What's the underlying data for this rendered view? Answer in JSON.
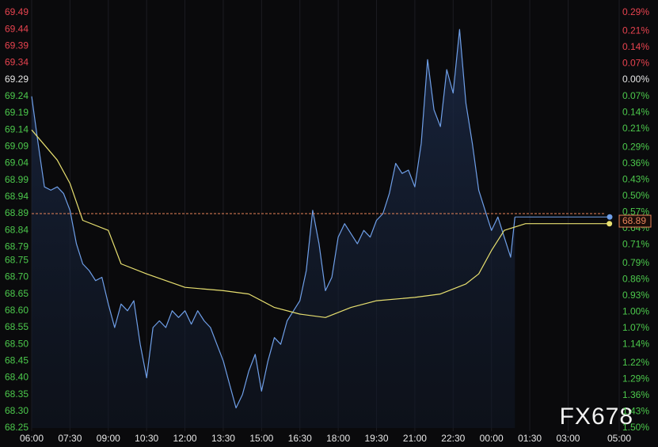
{
  "chart_data": {
    "type": "line",
    "watermark": "FX678",
    "reference": 69.29,
    "up_color": "#e8434f",
    "down_color": "#4cc94c",
    "flat_color": "#e6e6e6",
    "xlim": [
      0,
      1380
    ],
    "xticks": [
      {
        "value": 0,
        "label": "06:00"
      },
      {
        "value": 90,
        "label": "07:30"
      },
      {
        "value": 180,
        "label": "09:00"
      },
      {
        "value": 270,
        "label": "10:30"
      },
      {
        "value": 360,
        "label": "12:00"
      },
      {
        "value": 450,
        "label": "13:30"
      },
      {
        "value": 540,
        "label": "15:00"
      },
      {
        "value": 630,
        "label": "16:30"
      },
      {
        "value": 720,
        "label": "18:00"
      },
      {
        "value": 810,
        "label": "19:30"
      },
      {
        "value": 900,
        "label": "21:00"
      },
      {
        "value": 990,
        "label": "22:30"
      },
      {
        "value": 1080,
        "label": "00:00"
      },
      {
        "value": 1170,
        "label": "01:30"
      },
      {
        "value": 1260,
        "label": "03:00"
      },
      {
        "value": 1380,
        "label": "05:00"
      }
    ],
    "ylim": [
      68.25,
      69.49
    ],
    "yticks": [
      69.49,
      69.44,
      69.39,
      69.34,
      69.29,
      69.24,
      69.19,
      69.14,
      69.09,
      69.04,
      68.99,
      68.94,
      68.89,
      68.84,
      68.79,
      68.75,
      {
        "value": 68.7,
        "label": "68.70"
      },
      68.65,
      {
        "value": 68.6,
        "label": "68.60"
      },
      68.55,
      {
        "value": 68.5,
        "label": "68.50"
      },
      68.45,
      {
        "value": 68.4,
        "label": "68.40"
      },
      68.35,
      {
        "value": 68.3,
        "label": "68.30"
      },
      68.25
    ],
    "y2lim": [
      -1.5,
      0.29
    ],
    "y2ticks": [
      {
        "value": 0.29,
        "label": "0.29%"
      },
      {
        "value": 0.21,
        "label": "0.21%"
      },
      {
        "value": 0.14,
        "label": "0.14%"
      },
      {
        "value": 0.07,
        "label": "0.07%"
      },
      {
        "value": 0,
        "label": "0.00%"
      },
      {
        "value": -0.07,
        "label": "0.07%"
      },
      {
        "value": -0.14,
        "label": "0.14%"
      },
      {
        "value": -0.21,
        "label": "0.21%"
      },
      {
        "value": -0.29,
        "label": "0.29%"
      },
      {
        "value": -0.36,
        "label": "0.36%"
      },
      {
        "value": -0.43,
        "label": "0.43%"
      },
      {
        "value": -0.5,
        "label": "0.50%"
      },
      {
        "value": -0.57,
        "label": "0.57%"
      },
      {
        "value": -0.64,
        "label": "0.64%"
      },
      {
        "value": -0.71,
        "label": "0.71%"
      },
      {
        "value": -0.79,
        "label": "0.79%"
      },
      {
        "value": -0.86,
        "label": "0.86%"
      },
      {
        "value": -0.93,
        "label": "0.93%"
      },
      {
        "value": -1,
        "label": "1.00%"
      },
      {
        "value": -1.07,
        "label": "1.07%"
      },
      {
        "value": -1.14,
        "label": "1.14%"
      },
      {
        "value": -1.22,
        "label": "1.22%"
      },
      {
        "value": -1.29,
        "label": "1.29%"
      },
      {
        "value": -1.36,
        "label": "1.36%"
      },
      {
        "value": -1.43,
        "label": "1.43%"
      },
      {
        "value": -1.5,
        "label": "1.50%"
      }
    ],
    "last_price": 68.89,
    "series": [
      {
        "color": "#6f9fe8",
        "x": [
          0,
          15,
          30,
          45,
          60,
          75,
          90,
          105,
          120,
          135,
          150,
          165,
          180,
          195,
          210,
          225,
          240,
          255,
          270,
          285,
          300,
          315,
          330,
          345,
          360,
          375,
          390,
          405,
          420,
          435,
          450,
          465,
          480,
          495,
          510,
          525,
          540,
          555,
          570,
          585,
          600,
          615,
          630,
          645,
          660,
          675,
          690,
          705,
          720,
          735,
          750,
          765,
          780,
          795,
          810,
          825,
          840,
          855,
          870,
          885,
          900,
          915,
          930,
          945,
          960,
          975,
          990,
          1005,
          1020,
          1035,
          1050,
          1065,
          1080,
          1095,
          1110,
          1125,
          1135
        ],
        "values": [
          69.24,
          69.1,
          68.97,
          68.96,
          68.97,
          68.95,
          68.9,
          68.8,
          68.74,
          68.72,
          68.69,
          68.7,
          68.62,
          68.55,
          68.62,
          68.6,
          68.63,
          68.5,
          68.4,
          68.55,
          68.57,
          68.55,
          68.6,
          68.58,
          68.6,
          68.56,
          68.6,
          68.57,
          68.55,
          68.5,
          68.45,
          68.38,
          68.31,
          68.35,
          68.42,
          68.47,
          68.36,
          68.45,
          68.52,
          68.5,
          68.57,
          68.6,
          68.63,
          68.72,
          68.9,
          68.8,
          68.66,
          68.7,
          68.82,
          68.86,
          68.83,
          68.8,
          68.84,
          68.82,
          68.87,
          68.89,
          68.95,
          69.04,
          69.01,
          69.02,
          68.97,
          69.1,
          69.35,
          69.2,
          69.15,
          69.32,
          69.25,
          69.44,
          69.22,
          69.1,
          68.96,
          68.9,
          68.84,
          68.88,
          68.82,
          68.76,
          68.88
        ]
      },
      {
        "color": "#e8e070",
        "x": [
          0,
          60,
          90,
          120,
          180,
          210,
          270,
          360,
          450,
          510,
          570,
          630,
          690,
          750,
          810,
          900,
          960,
          1020,
          1050,
          1080,
          1110,
          1160,
          1357
        ],
        "values": [
          69.14,
          69.05,
          68.98,
          68.87,
          68.84,
          68.74,
          68.71,
          68.67,
          68.66,
          68.65,
          68.61,
          68.59,
          68.58,
          68.61,
          68.63,
          68.64,
          68.65,
          68.68,
          68.71,
          68.78,
          68.84,
          68.86,
          68.86
        ]
      }
    ]
  }
}
